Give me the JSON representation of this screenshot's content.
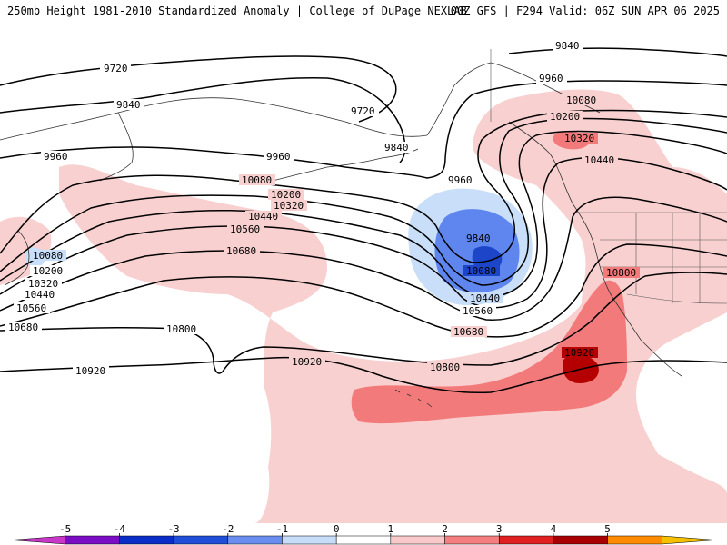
{
  "header": {
    "left": "250mb Height 1981-2010 Standardized Anomaly | College of DuPage NEXLAB",
    "right": "00Z GFS | F294 Valid: 06Z SUN APR 06 2025"
  },
  "contour_labels": {
    "h9720a": "9720",
    "h9720b": "9720",
    "h9840a": "9840",
    "h9840b": "9840",
    "h9840c": "9840",
    "h9840d": "9840",
    "h9960a": "9960",
    "h9960b": "9960",
    "h9960c": "9960",
    "h10080a": "10080",
    "h10080b": "10080",
    "h10080c": "10080",
    "h10080d": "10080",
    "h10200a": "10200",
    "h10200b": "10200",
    "h10200c": "10200",
    "h10320a": "10320",
    "h10320b": "10320",
    "h10320c": "10320",
    "h10440a": "10440",
    "h10440b": "10440",
    "h10440c": "10440",
    "h10440d": "10440",
    "h10560a": "10560",
    "h10560b": "10560",
    "h10560c": "10560",
    "h10680a": "10680",
    "h10680b": "10680",
    "h10680c": "10680",
    "h10800a": "10800",
    "h10800b": "10800",
    "h10800c": "10800",
    "h10920a": "10920",
    "h10920b": "10920",
    "h10920c": "10920"
  },
  "colorbar": {
    "ticks": [
      "-5",
      "-4",
      "-3",
      "-2",
      "-1",
      "0",
      "1",
      "2",
      "3",
      "4",
      "5"
    ],
    "colors": [
      "#c837c8",
      "#7a0cc4",
      "#0a2dc8",
      "#1f4fd8",
      "#6a8ef0",
      "#c6dcf8",
      "#ffffff",
      "#f9c9c9",
      "#f57f7f",
      "#e02020",
      "#a80000",
      "#ff8c00",
      "#f4c000"
    ]
  },
  "legend_colors": {
    "pos1": "#f9d0d0",
    "pos2": "#f37a7a",
    "pos3": "#b40000",
    "neg1": "#c9def8",
    "neg2": "#5f86ee",
    "neg3": "#1c45c8"
  }
}
